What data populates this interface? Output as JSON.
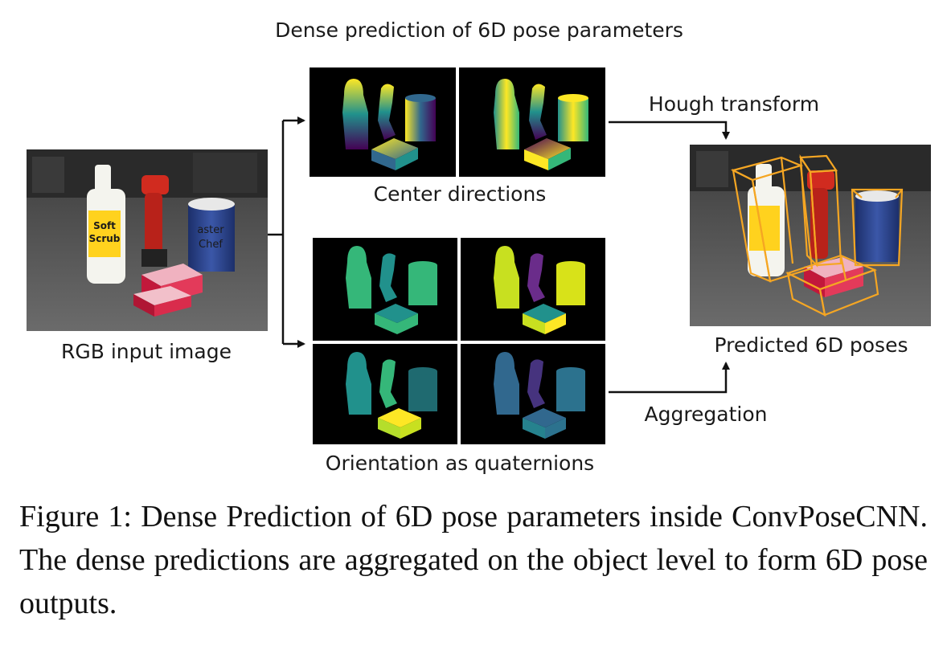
{
  "diagram": {
    "top_title": "Dense prediction of 6D pose parameters",
    "input_label": "RGB input image",
    "center_label": "Center directions",
    "orientation_label": "Orientation as quaternions",
    "hough_label": "Hough transform",
    "aggregation_label": "Aggregation",
    "output_label": "Predicted 6D poses",
    "scene_text": {
      "bottle_brand_line1": "Soft",
      "bottle_brand_line2": "Scrub",
      "can_brand_line1": "aster",
      "can_brand_line2": "Chef"
    },
    "colors": {
      "bbox": "#f5a623",
      "viridis_purple": "#440154",
      "viridis_blue": "#31688e",
      "viridis_teal": "#21918c",
      "viridis_green": "#35b779",
      "viridis_yellow": "#fde725"
    }
  },
  "caption": {
    "text": "Figure 1: Dense Prediction of 6D pose parameters inside ConvPoseCNN. The dense predictions are aggregated on the object level to form 6D pose outputs."
  }
}
